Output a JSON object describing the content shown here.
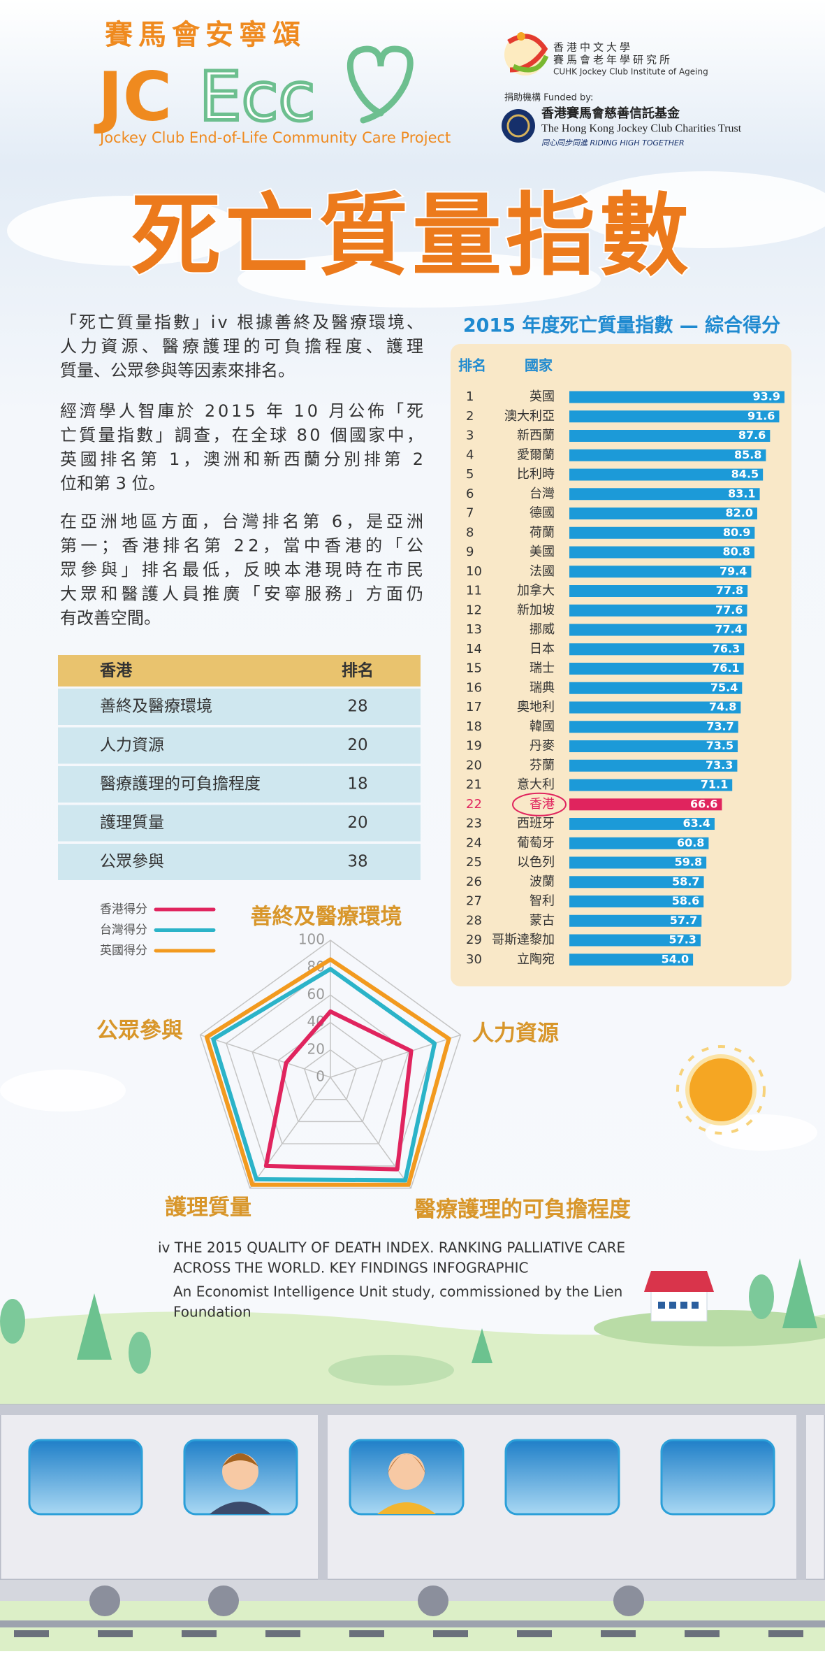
{
  "header": {
    "logo_chinese": "賽馬會安寧頌",
    "logo_jc": "JC",
    "logo_ecc": "Ecc",
    "project_name": "Jockey Club End-of-Life Community Care Project",
    "cuhk_lines": [
      "香港中文大學",
      "賽馬會老年學研究所",
      "CUHK Jockey Club Institute of Ageing"
    ],
    "funded_by": "捐助機構 Funded by:",
    "hkjc_chinese": "香港賽馬會慈善信託基金",
    "hkjc_english": "The Hong Kong Jockey Club Charities Trust",
    "hkjc_motto": "同心同步同進 RIDING HIGH TOGETHER"
  },
  "title": "死亡質量指數",
  "intro": [
    [
      "「死亡質量指數」iv 根據善終及醫療環境、",
      "人力資源、醫療護理的可負擔程度、護理",
      "質量、公眾參與等因素來排名。"
    ],
    [
      "經濟學人智庫於 2015 年 10 月公佈「死",
      "亡質量指數」調查，在全球 80 個國家中，",
      "英國排名第 1，澳洲和新西蘭分別排第 2",
      "位和第 3 位。"
    ],
    [
      "在亞洲地區方面，台灣排名第 6，是亞洲",
      "第一；香港排名第 22，當中香港的「公",
      "眾參與」排名最低，反映本港現時在市民",
      "大眾和醫護人員推廣「安寧服務」方面仍",
      "有改善空間。"
    ]
  ],
  "table": {
    "header": [
      "香港",
      "排名"
    ],
    "rows": [
      [
        "善終及醫療環境",
        28
      ],
      [
        "人力資源",
        20
      ],
      [
        "醫療護理的可負擔程度",
        18
      ],
      [
        "護理質量",
        20
      ],
      [
        "公眾參與",
        38
      ]
    ]
  },
  "chart_data": [
    {
      "type": "bar",
      "orientation": "horizontal",
      "title": "2015 年度死亡質量指數 — 綜合得分",
      "rank_header": "排名",
      "category_header": "國家",
      "ranks": [
        1,
        2,
        3,
        4,
        5,
        6,
        7,
        8,
        9,
        10,
        11,
        12,
        13,
        14,
        15,
        16,
        17,
        18,
        19,
        20,
        21,
        22,
        23,
        24,
        25,
        26,
        27,
        28,
        29,
        30
      ],
      "categories": [
        "英國",
        "澳大利亞",
        "新西蘭",
        "愛爾蘭",
        "比利時",
        "台灣",
        "德國",
        "荷蘭",
        "美國",
        "法國",
        "加拿大",
        "新加坡",
        "挪威",
        "日本",
        "瑞士",
        "瑞典",
        "奧地利",
        "韓國",
        "丹麥",
        "芬蘭",
        "意大利",
        "香港",
        "西班牙",
        "葡萄牙",
        "以色列",
        "波蘭",
        "智利",
        "蒙古",
        "哥斯達黎加",
        "立陶宛"
      ],
      "values": [
        93.9,
        91.6,
        87.6,
        85.8,
        84.5,
        83.1,
        82.0,
        80.9,
        80.8,
        79.4,
        77.8,
        77.6,
        77.4,
        76.3,
        76.1,
        75.4,
        74.8,
        73.7,
        73.5,
        73.3,
        71.1,
        66.6,
        63.4,
        60.8,
        59.8,
        58.7,
        58.6,
        57.7,
        57.3,
        54.0
      ],
      "value_labels": [
        "93.9",
        "91.6",
        "87.6",
        "85.8",
        "84.5",
        "83.1",
        "82.0",
        "80.9",
        "80.8",
        "79.4",
        "77.8",
        "77.6",
        "77.4",
        "76.3",
        "76.1",
        "75.4",
        "74.8",
        "73.7",
        "73.5",
        "73.3",
        "71.1",
        "66.6",
        "63.4",
        "60.8",
        "59.8",
        "58.7",
        "58.6",
        "57.7",
        "57.3",
        "54.0"
      ],
      "colors": [
        "#1c9ad8",
        "#1c9ad8",
        "#1c9ad8",
        "#1c9ad8",
        "#1c9ad8",
        "#1c9ad8",
        "#1c9ad8",
        "#1c9ad8",
        "#1c9ad8",
        "#1c9ad8",
        "#1c9ad8",
        "#1c9ad8",
        "#1c9ad8",
        "#1c9ad8",
        "#1c9ad8",
        "#1c9ad8",
        "#1c9ad8",
        "#1c9ad8",
        "#1c9ad8",
        "#1c9ad8",
        "#1c9ad8",
        "#e0245e",
        "#1c9ad8",
        "#1c9ad8",
        "#1c9ad8",
        "#1c9ad8",
        "#1c9ad8",
        "#1c9ad8",
        "#1c9ad8",
        "#1c9ad8"
      ],
      "xlim": [
        0,
        100
      ]
    },
    {
      "type": "radar",
      "axes": [
        "善終及醫療環境",
        "人力資源",
        "醫療護理的可負擔程度",
        "護理質量",
        "公眾參與"
      ],
      "ylim": [
        0,
        100
      ],
      "yticks": [
        0,
        20,
        40,
        60,
        80,
        100
      ],
      "grid": true,
      "series": [
        {
          "name": "香港得分",
          "color": "#e0245e",
          "values": [
            48,
            62,
            83,
            80,
            34
          ]
        },
        {
          "name": "台灣得分",
          "color": "#2bb3c8",
          "values": [
            79,
            80,
            93,
            92,
            90
          ]
        },
        {
          "name": "英國得分",
          "color": "#f29a1f",
          "values": [
            86,
            91,
            97,
            97,
            95
          ]
        }
      ]
    }
  ],
  "footnote": [
    "iv THE 2015 QUALITY OF DEATH INDEX. RANKING PALLIATIVE CARE",
    "ACROSS THE WORLD. KEY FINDINGS INFOGRAPHIC",
    "An Economist Intelligence Unit study, commissioned by the Lien",
    "Foundation"
  ]
}
